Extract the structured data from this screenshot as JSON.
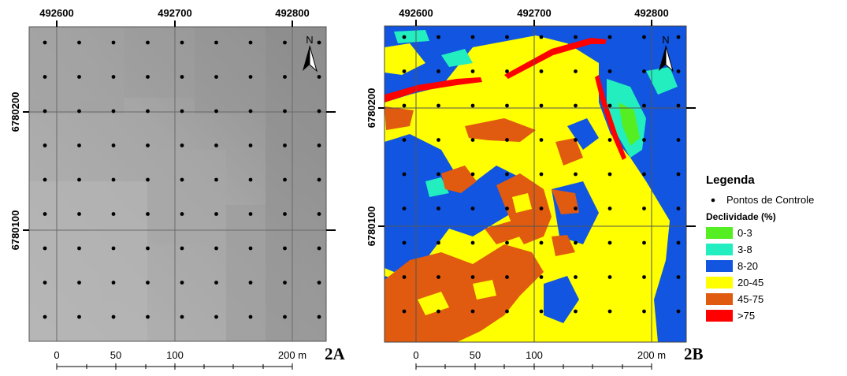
{
  "maps": [
    {
      "id": "2A",
      "label": "2A",
      "x_ticks": [
        "492600",
        "492700",
        "492800"
      ],
      "y_ticks": [
        "6780200",
        "6780100"
      ],
      "north_label": "N",
      "scale_labels": [
        "0",
        "50",
        "100",
        "200 m"
      ]
    },
    {
      "id": "2B",
      "label": "2B",
      "x_ticks": [
        "492600",
        "492700",
        "492800"
      ],
      "y_ticks": [
        "6780200",
        "6780100"
      ],
      "north_label": "N",
      "scale_labels": [
        "0",
        "50",
        "100",
        "200 m"
      ]
    }
  ],
  "legend": {
    "title": "Legenda",
    "points_label": "Pontos de Controle",
    "slope_title": "Declividade (%)",
    "classes": [
      {
        "label": "0-3",
        "color": "#55ee22"
      },
      {
        "label": "3-8",
        "color": "#22eec0"
      },
      {
        "label": "8-20",
        "color": "#1155e0"
      },
      {
        "label": "20-45",
        "color": "#ffff00"
      },
      {
        "label": "45-75",
        "color": "#e05a10"
      },
      {
        "label": ">75",
        "color": "#ff0000"
      }
    ]
  },
  "control_point_grid": {
    "columns": 9,
    "rows": 9
  }
}
